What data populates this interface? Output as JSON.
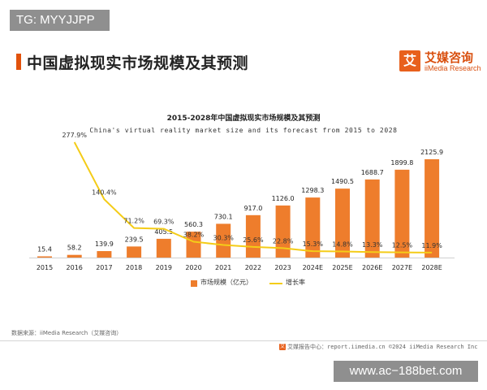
{
  "watermark_top": "TG: MYYJJPP",
  "header": {
    "title": "中国虚拟现实市场规模及其预测"
  },
  "logo": {
    "icon_char": "艾",
    "cn": "艾媒咨询",
    "en": "iiMedia Research",
    "color": "#e8601c"
  },
  "chart_data": {
    "type": "bar",
    "title": "2015-2028年中国虚拟现实市场规模及其预测",
    "subtitle": "China's virtual reality market size and its forecast from 2015 to 2028",
    "categories": [
      "2015",
      "2016",
      "2017",
      "2018",
      "2019",
      "2020",
      "2021",
      "2022",
      "2023",
      "2024E",
      "2025E",
      "2026E",
      "2027E",
      "2028E"
    ],
    "series": [
      {
        "name": "市场规模（亿元）",
        "kind": "bar",
        "color": "#ee7d2c",
        "values": [
          15.4,
          58.2,
          139.9,
          239.5,
          405.5,
          560.3,
          730.1,
          917.0,
          1126.0,
          1298.3,
          1490.5,
          1688.7,
          1899.8,
          2125.9
        ],
        "labels": [
          "15.4",
          "58.2",
          "139.9",
          "239.5",
          "405.5",
          "560.3",
          "730.1",
          "917.0",
          "1126.0",
          "1298.3",
          "1490.5",
          "1688.7",
          "1899.8",
          "2125.9"
        ]
      },
      {
        "name": "增长率",
        "kind": "line",
        "color": "#f4cc18",
        "values": [
          null,
          277.9,
          140.4,
          71.2,
          69.3,
          38.2,
          30.3,
          25.6,
          22.8,
          15.3,
          14.8,
          13.3,
          12.5,
          11.9
        ],
        "labels": [
          "",
          "277.9%",
          "140.4%",
          "71.2%",
          "69.3%",
          "38.2%",
          "30.3%",
          "25.6%",
          "22.8%",
          "15.3%",
          "14.8%",
          "13.3%",
          "12.5%",
          "11.9%"
        ]
      }
    ],
    "ylim_bar": [
      0,
      2125.9
    ],
    "ylim_line": [
      0,
      277.9
    ],
    "grid": false,
    "legend_position": "bottom-center"
  },
  "source": "数据来源：iiMedia Research（艾媒咨询）",
  "footer": {
    "icon_char": "艾",
    "text": "艾媒报告中心：report.iimedia.cn  ©2024  iiMedia Research  Inc"
  },
  "watermark_bottom": "www.ac−188bet.com"
}
